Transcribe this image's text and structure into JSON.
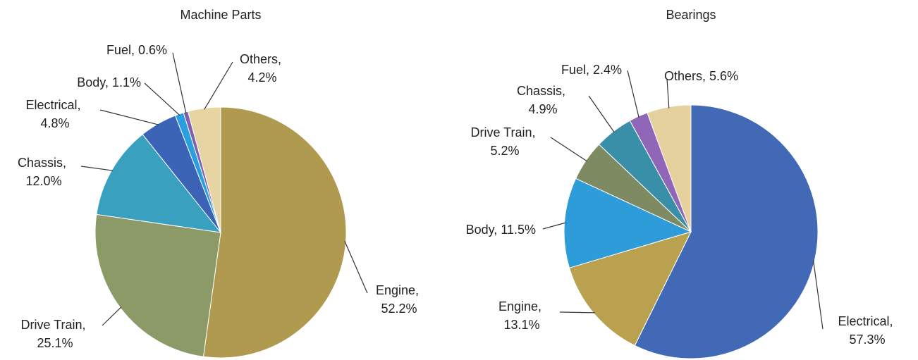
{
  "chart_data": [
    {
      "type": "pie",
      "title": "Machine Parts",
      "categories": [
        "Engine",
        "Drive Train",
        "Chassis",
        "Electrical",
        "Body",
        "Fuel",
        "Others"
      ],
      "values": [
        52.2,
        25.1,
        12.0,
        4.8,
        1.1,
        0.6,
        4.2
      ],
      "value_labels": [
        "52.2%",
        "25.1%",
        "12.0%",
        "4.8%",
        "1.1%",
        "0.6%",
        "4.2%"
      ],
      "label_separator": ", ",
      "colors": [
        "#b09a50",
        "#8b9a66",
        "#3aa0c0",
        "#3b64b6",
        "#2a9fe0",
        "#8060b0",
        "#e6d4a2"
      ]
    },
    {
      "type": "pie",
      "title": "Bearings",
      "categories": [
        "Electrical",
        "Engine",
        "Body",
        "Drive Train",
        "Chassis",
        "Fuel",
        "Others"
      ],
      "values": [
        57.3,
        13.1,
        11.5,
        5.2,
        4.9,
        2.4,
        5.6
      ],
      "value_labels": [
        "57.3%",
        "13.1%",
        "11.5%",
        "5.2%",
        "4.9%",
        "2.4%",
        "5.6%"
      ],
      "label_separator": ", ",
      "colors": [
        "#4169b5",
        "#baa150",
        "#2e9cd8",
        "#7e8b62",
        "#3a8fa8",
        "#9066b8",
        "#e5d19e"
      ]
    }
  ]
}
